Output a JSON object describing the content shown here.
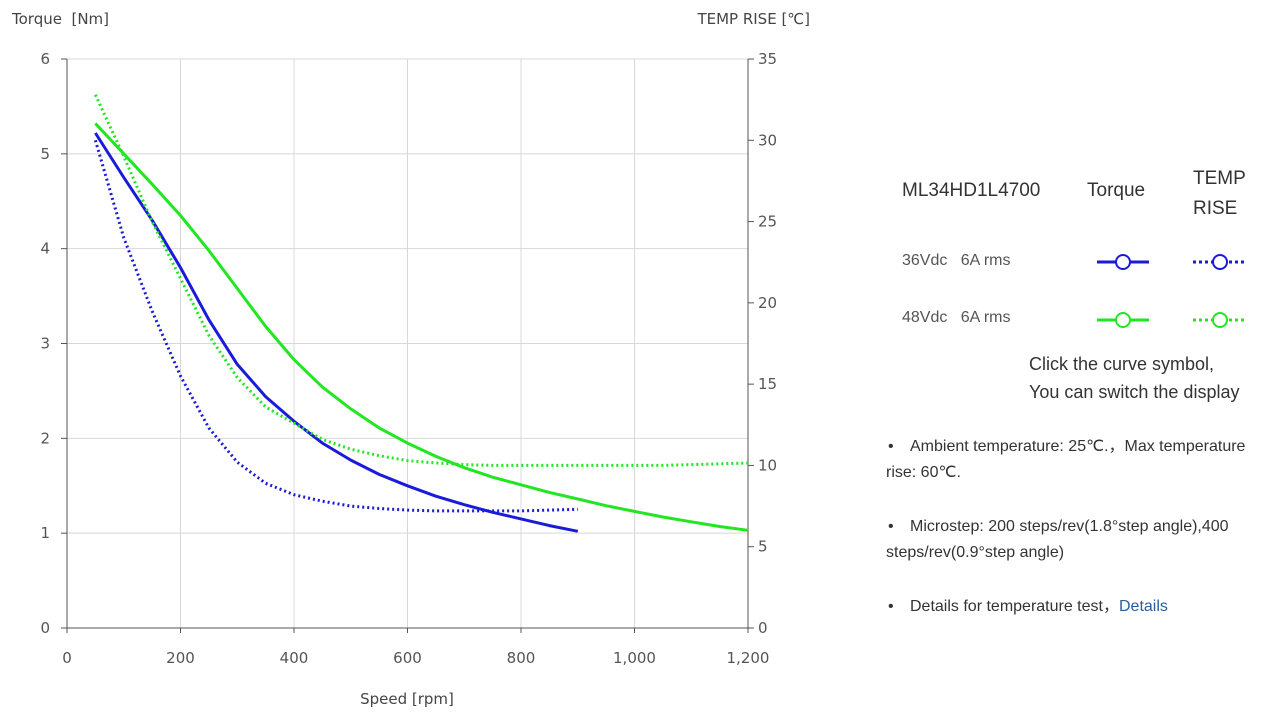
{
  "chart_data": {
    "type": "line",
    "xlabel": "Speed [rpm]",
    "ylabel_left": "Torque  [Nm]",
    "ylabel_right": "TEMP RISE [℃]",
    "xlim": [
      0,
      1200
    ],
    "ylim_left": [
      0,
      6
    ],
    "ylim_right": [
      0,
      35
    ],
    "x_ticks": [
      "0",
      "200",
      "400",
      "600",
      "800",
      "1,000",
      "1,200"
    ],
    "y_left_ticks": [
      "0",
      "1",
      "2",
      "3",
      "4",
      "5",
      "6"
    ],
    "y_right_ticks": [
      "0",
      "5",
      "10",
      "15",
      "20",
      "25",
      "30",
      "35"
    ],
    "grid": true,
    "series": [
      {
        "name": "36Vdc 6A rms Torque",
        "axis": "left",
        "style": "solid",
        "color": "#1a1adb",
        "x": [
          50,
          100,
          150,
          200,
          250,
          300,
          350,
          400,
          450,
          500,
          550,
          600,
          650,
          700,
          750,
          800,
          850,
          900
        ],
        "y": [
          5.22,
          4.75,
          4.3,
          3.8,
          3.25,
          2.78,
          2.44,
          2.18,
          1.95,
          1.77,
          1.62,
          1.5,
          1.39,
          1.3,
          1.22,
          1.15,
          1.08,
          1.02
        ]
      },
      {
        "name": "36Vdc 6A rms TEMP RISE",
        "axis": "right",
        "style": "dotted",
        "color": "#1a1adb",
        "x": [
          50,
          100,
          150,
          200,
          250,
          300,
          350,
          400,
          450,
          500,
          550,
          600,
          650,
          700,
          750,
          800,
          850,
          900
        ],
        "y": [
          30.0,
          24.0,
          19.5,
          15.5,
          12.3,
          10.2,
          8.9,
          8.2,
          7.8,
          7.5,
          7.35,
          7.25,
          7.2,
          7.2,
          7.2,
          7.2,
          7.25,
          7.3
        ]
      },
      {
        "name": "48Vdc 6A rms Torque",
        "axis": "left",
        "style": "solid",
        "color": "#22e622",
        "x": [
          50,
          100,
          150,
          200,
          250,
          300,
          350,
          400,
          450,
          500,
          550,
          600,
          650,
          700,
          750,
          800,
          850,
          900,
          950,
          1000,
          1050,
          1100,
          1150,
          1200
        ],
        "y": [
          5.32,
          5.0,
          4.68,
          4.35,
          3.98,
          3.58,
          3.18,
          2.83,
          2.54,
          2.31,
          2.11,
          1.95,
          1.81,
          1.69,
          1.59,
          1.51,
          1.43,
          1.36,
          1.29,
          1.23,
          1.17,
          1.12,
          1.07,
          1.03
        ]
      },
      {
        "name": "48Vdc 6A rms TEMP RISE",
        "axis": "right",
        "style": "dotted",
        "color": "#22e622",
        "x": [
          50,
          100,
          150,
          200,
          250,
          300,
          350,
          400,
          450,
          500,
          550,
          600,
          650,
          700,
          750,
          800,
          850,
          900,
          950,
          1000,
          1050,
          1100,
          1150,
          1200
        ],
        "y": [
          32.8,
          29.0,
          25.0,
          21.5,
          18.0,
          15.4,
          13.6,
          12.6,
          11.6,
          11.0,
          10.6,
          10.3,
          10.15,
          10.05,
          10.0,
          10.0,
          10.0,
          10.0,
          10.0,
          10.0,
          10.0,
          10.05,
          10.1,
          10.15
        ]
      }
    ]
  },
  "legend": {
    "model": "ML34HD1L4700",
    "col_torque": "Torque",
    "col_temp": "TEMP RISE",
    "rows": [
      {
        "label": "36Vdc   6A rms",
        "color": "#1a1adb"
      },
      {
        "label": "48Vdc   6A rms",
        "color": "#22e622"
      }
    ],
    "note_line1": "Click the curve symbol,",
    "note_line2": "You can switch the display"
  },
  "notes": {
    "ambient": "Ambient temperature: 25℃.，Max temperature rise: 60℃.",
    "microstep": "Microstep: 200 steps/rev(1.8°step angle),400 steps/rev(0.9°step angle)",
    "details_text": "Details for temperature test，",
    "details_link": "Details"
  }
}
